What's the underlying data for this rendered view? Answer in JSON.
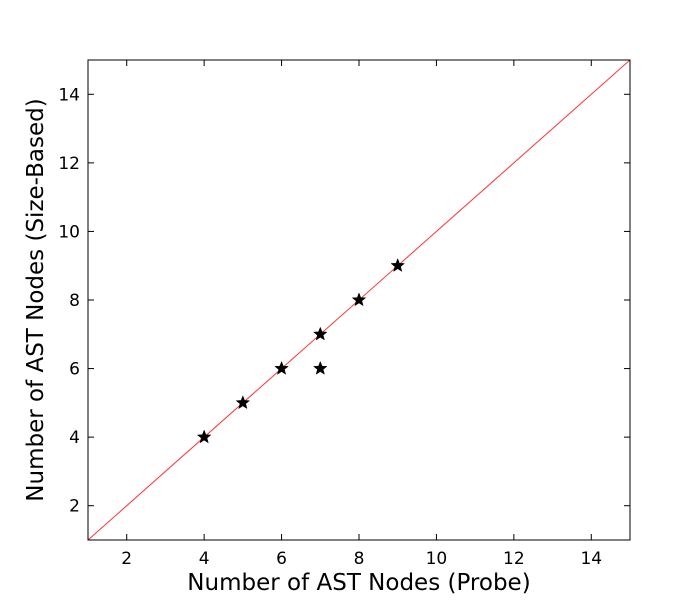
{
  "chart_data": {
    "type": "scatter",
    "xlabel": "Number of AST Nodes (Probe)",
    "ylabel": "Number of AST Nodes (Size-Based)",
    "xlim": [
      1,
      15
    ],
    "ylim": [
      1,
      15
    ],
    "xticks": [
      "2",
      "4",
      "6",
      "8",
      "10",
      "12",
      "14"
    ],
    "yticks": [
      "2",
      "4",
      "6",
      "8",
      "10",
      "12",
      "14"
    ],
    "grid": false,
    "marker": "star",
    "marker_color": "#000000",
    "reference_line": {
      "x": [
        1,
        15
      ],
      "y": [
        1,
        15
      ],
      "color": "#ff3333"
    },
    "points": [
      {
        "x": 4,
        "y": 4
      },
      {
        "x": 5,
        "y": 5
      },
      {
        "x": 6,
        "y": 6
      },
      {
        "x": 7,
        "y": 7
      },
      {
        "x": 7,
        "y": 6
      },
      {
        "x": 8,
        "y": 8
      },
      {
        "x": 9,
        "y": 9
      }
    ]
  }
}
